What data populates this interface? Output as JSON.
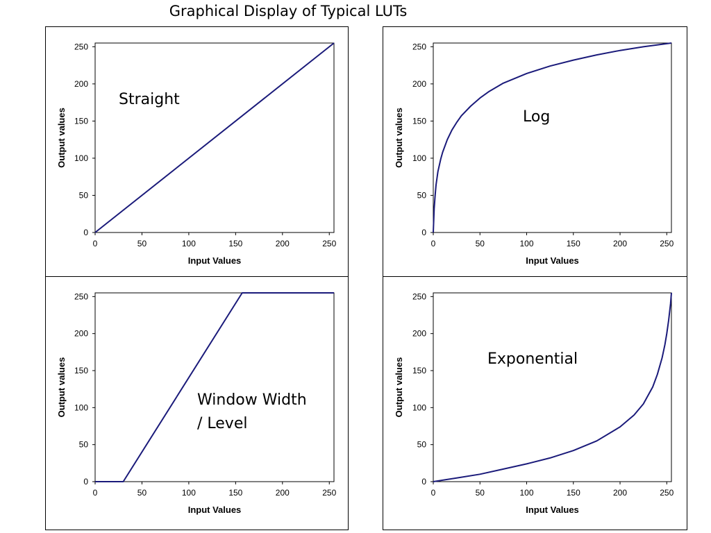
{
  "title": "Graphical Display of Typical LUTs",
  "line_color": "#1a1a7a",
  "chart_data": [
    {
      "type": "line",
      "name": "",
      "annotation": "Straight",
      "xlabel": "Input Values",
      "ylabel": "Output values",
      "xlim": [
        0,
        255
      ],
      "ylim": [
        0,
        255
      ],
      "xticks": [
        0,
        50,
        100,
        150,
        200,
        250
      ],
      "yticks": [
        0,
        50,
        100,
        150,
        200,
        250
      ],
      "x": [
        0,
        255
      ],
      "y": [
        0,
        255
      ]
    },
    {
      "type": "line",
      "name": "",
      "annotation": "Log",
      "xlabel": "Input Values",
      "ylabel": "Output values",
      "xlim": [
        0,
        255
      ],
      "ylim": [
        0,
        255
      ],
      "xticks": [
        0,
        50,
        100,
        150,
        200,
        250
      ],
      "yticks": [
        0,
        50,
        100,
        150,
        200,
        250
      ],
      "x": [
        0,
        1,
        2,
        3,
        5,
        8,
        10,
        15,
        20,
        25,
        30,
        40,
        50,
        60,
        75,
        100,
        125,
        150,
        175,
        200,
        225,
        255
      ],
      "y": [
        0,
        32,
        50,
        64,
        82,
        99,
        108,
        125,
        138,
        148,
        157,
        170,
        181,
        190,
        201,
        214,
        224,
        232,
        239,
        245,
        250,
        255
      ]
    },
    {
      "type": "line",
      "name": "",
      "annotation": "Window Width\n / Level",
      "xlabel": "Input Values",
      "ylabel": "Output values",
      "xlim": [
        0,
        255
      ],
      "ylim": [
        0,
        255
      ],
      "xticks": [
        0,
        50,
        100,
        150,
        200,
        250
      ],
      "yticks": [
        0,
        50,
        100,
        150,
        200,
        250
      ],
      "x": [
        0,
        30,
        157,
        255
      ],
      "y": [
        0,
        0,
        255,
        255
      ]
    },
    {
      "type": "line",
      "name": "",
      "annotation": "Exponential",
      "xlabel": "Input Values",
      "ylabel": "Output values",
      "xlim": [
        0,
        255
      ],
      "ylim": [
        0,
        255
      ],
      "xticks": [
        0,
        50,
        100,
        150,
        200,
        250
      ],
      "yticks": [
        0,
        50,
        100,
        150,
        200,
        250
      ],
      "x": [
        0,
        25,
        50,
        75,
        100,
        125,
        150,
        175,
        200,
        215,
        225,
        235,
        240,
        245,
        248,
        250,
        252,
        254,
        255
      ],
      "y": [
        0,
        5,
        10,
        17,
        24,
        32,
        42,
        55,
        74,
        90,
        105,
        128,
        145,
        167,
        185,
        200,
        218,
        240,
        255
      ]
    }
  ]
}
